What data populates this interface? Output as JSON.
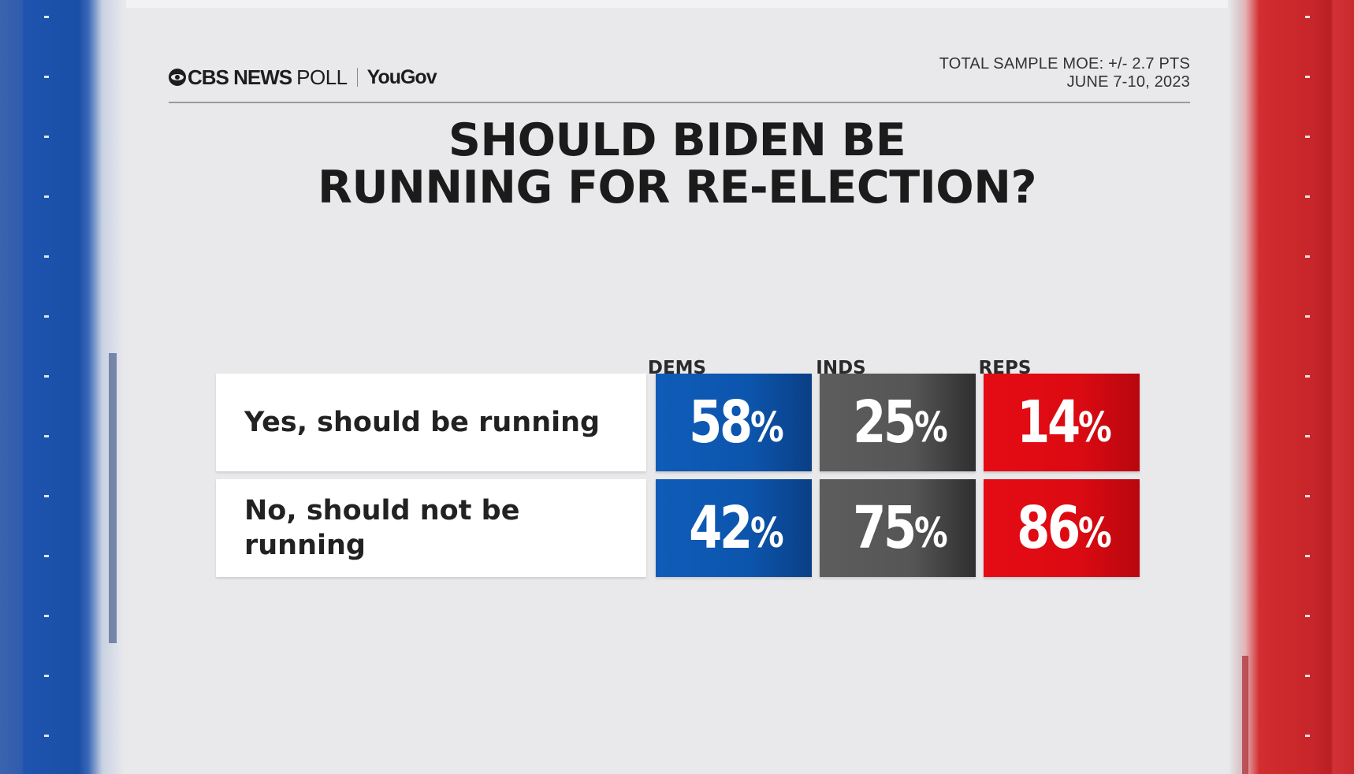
{
  "brand": {
    "cbs": "CBS NEWS",
    "poll": "POLL",
    "partner": "YouGov"
  },
  "meta": {
    "moe": "TOTAL SAMPLE MOE: +/- 2.7 PTS",
    "dates": "JUNE 7-10, 2023"
  },
  "chart_data": {
    "type": "table",
    "title_lines": [
      "SHOULD BIDEN BE",
      "RUNNING FOR RE-ELECTION?"
    ],
    "columns": [
      "DEMS",
      "INDS",
      "REPS"
    ],
    "rows": [
      {
        "label_lines": [
          "Yes, should be running"
        ],
        "values": [
          58,
          25,
          14
        ],
        "display": [
          "58",
          "25",
          "14"
        ]
      },
      {
        "label_lines": [
          "No, should not be",
          "running"
        ],
        "values": [
          42,
          75,
          86
        ],
        "display": [
          "42",
          "75",
          "86"
        ]
      }
    ],
    "unit": "%",
    "colors": {
      "DEMS": "#0c55ad",
      "INDS": "#555555",
      "REPS": "#dc0a12"
    }
  }
}
